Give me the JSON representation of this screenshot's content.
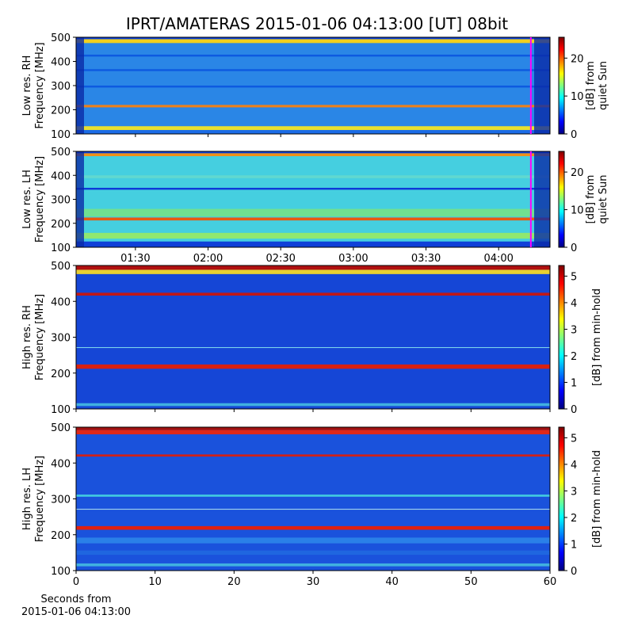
{
  "title": "IPRT/AMATERAS 2015-01-06 04:13:00 [UT]   08bit",
  "chart_data": [
    {
      "type": "heatmap",
      "ylabel": [
        "Low res. RH",
        "Frequency [MHz]"
      ],
      "ylim": [
        100,
        500
      ],
      "yticks": [
        100,
        200,
        300,
        400,
        500
      ],
      "xlim": [
        65.5,
        261.2
      ],
      "xticks": [
        90,
        120,
        150,
        180,
        210,
        240
      ],
      "vlines": [
        {
          "x": 253.3,
          "color": "#ff00ff"
        }
      ],
      "colorbar": {
        "label": [
          "[dB] from",
          "quiet Sun"
        ],
        "lim": [
          0,
          25.5
        ],
        "ticks": [
          0,
          10,
          20
        ]
      }
    },
    {
      "type": "heatmap",
      "ylabel": [
        "Low res. LH",
        "Frequency [MHz]"
      ],
      "ylim": [
        100,
        500
      ],
      "yticks": [
        100,
        200,
        300,
        400,
        500
      ],
      "xlim": [
        65.5,
        261.2
      ],
      "xticks": [
        {
          "value": 90,
          "label": "01:30"
        },
        {
          "value": 120,
          "label": "02:00"
        },
        {
          "value": 150,
          "label": "02:30"
        },
        {
          "value": 180,
          "label": "03:00"
        },
        {
          "value": 210,
          "label": "03:30"
        },
        {
          "value": 240,
          "label": "04:00"
        }
      ],
      "vlines": [
        {
          "x": 253.3,
          "color": "#ff00ff"
        }
      ],
      "colorbar": {
        "label": [
          "[dB] from",
          "quiet Sun"
        ],
        "lim": [
          0,
          25.5
        ],
        "ticks": [
          0,
          10,
          20
        ]
      }
    },
    {
      "type": "heatmap",
      "ylabel": [
        "High res. RH",
        "Frequency [MHz]"
      ],
      "ylim": [
        100,
        500
      ],
      "yticks": [
        100,
        200,
        300,
        400,
        500
      ],
      "xlim": [
        0,
        60
      ],
      "xticks": [
        0,
        10,
        20,
        30,
        40,
        50,
        60
      ],
      "colorbar": {
        "label": [
          "[dB] from min-hold"
        ],
        "lim": [
          0,
          5.4
        ],
        "ticks": [
          0,
          1,
          2,
          3,
          4,
          5
        ]
      }
    },
    {
      "type": "heatmap",
      "ylabel": [
        "High res. LH",
        "Frequency [MHz]"
      ],
      "ylim": [
        100,
        500
      ],
      "yticks": [
        100,
        200,
        300,
        400,
        500
      ],
      "xlim": [
        0,
        60
      ],
      "xticks": [
        0,
        10,
        20,
        30,
        40,
        50,
        60
      ],
      "xlabel": [
        "Seconds from",
        "2015-01-06 04:13:00"
      ],
      "colorbar": {
        "label": [
          "[dB] from min-hold"
        ],
        "lim": [
          0,
          5.4
        ],
        "ticks": [
          0,
          1,
          2,
          3,
          4,
          5
        ]
      }
    }
  ]
}
